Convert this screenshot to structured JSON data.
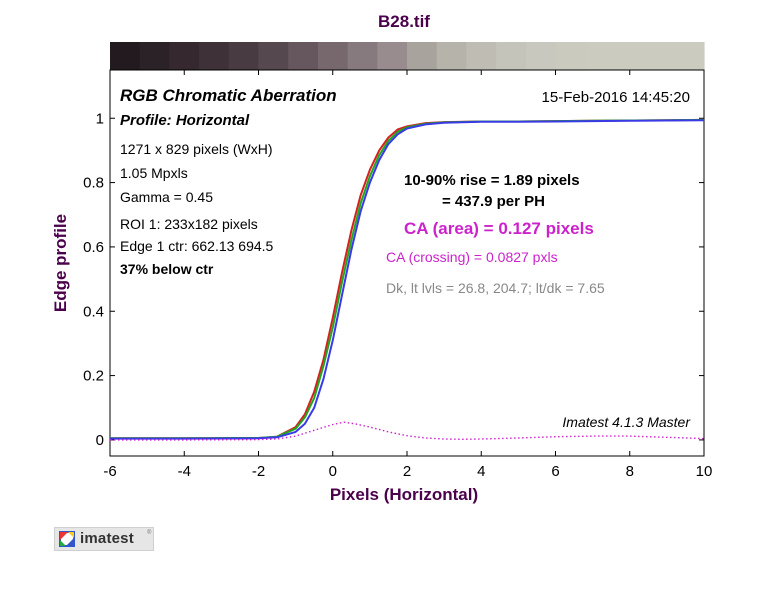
{
  "chart_data": {
    "type": "line",
    "title": "B28.tif",
    "xlabel": "Pixels (Horizontal)",
    "ylabel": "Edge profile",
    "xlim": [
      -6,
      10
    ],
    "ylim": [
      -0.05,
      1.15
    ],
    "xticks": [
      -6,
      -4,
      -2,
      0,
      2,
      4,
      6,
      8,
      10
    ],
    "yticks": [
      0,
      0.2,
      0.4,
      0.6,
      0.8,
      1
    ],
    "grid": false,
    "colors": {
      "red": "#d62020",
      "green": "#1fa81f",
      "blue": "#3a3ae6",
      "ca": "#cc22cc",
      "title": "#4b004b"
    },
    "series": [
      {
        "color": "red",
        "x": [
          -6,
          -4,
          -2,
          -1.5,
          -1,
          -0.75,
          -0.5,
          -0.25,
          0,
          0.25,
          0.5,
          0.75,
          1,
          1.25,
          1.5,
          1.75,
          2,
          2.5,
          3,
          4,
          5,
          6,
          7,
          8,
          9,
          10
        ],
        "y": [
          0.005,
          0.005,
          0.006,
          0.01,
          0.04,
          0.08,
          0.15,
          0.25,
          0.38,
          0.52,
          0.65,
          0.76,
          0.84,
          0.9,
          0.94,
          0.965,
          0.975,
          0.985,
          0.988,
          0.99,
          0.99,
          0.991,
          0.992,
          0.993,
          0.994,
          0.995
        ]
      },
      {
        "color": "green",
        "x": [
          -6,
          -4,
          -2,
          -1.5,
          -1,
          -0.75,
          -0.5,
          -0.25,
          0,
          0.25,
          0.5,
          0.75,
          1,
          1.25,
          1.5,
          1.75,
          2,
          2.5,
          3,
          4,
          5,
          6,
          7,
          8,
          9,
          10
        ],
        "y": [
          0.005,
          0.005,
          0.006,
          0.01,
          0.035,
          0.07,
          0.13,
          0.23,
          0.35,
          0.49,
          0.62,
          0.735,
          0.82,
          0.885,
          0.93,
          0.958,
          0.972,
          0.983,
          0.987,
          0.99,
          0.99,
          0.991,
          0.992,
          0.993,
          0.994,
          0.995
        ]
      },
      {
        "color": "blue",
        "x": [
          -6,
          -4,
          -2,
          -1.5,
          -1,
          -0.75,
          -0.5,
          -0.25,
          0,
          0.25,
          0.5,
          0.75,
          1,
          1.25,
          1.5,
          1.75,
          2,
          2.5,
          3,
          4,
          5,
          6,
          7,
          8,
          9,
          10
        ],
        "y": [
          0.004,
          0.004,
          0.005,
          0.008,
          0.025,
          0.05,
          0.1,
          0.19,
          0.31,
          0.45,
          0.59,
          0.71,
          0.8,
          0.87,
          0.92,
          0.95,
          0.968,
          0.981,
          0.986,
          0.989,
          0.989,
          0.99,
          0.991,
          0.992,
          0.993,
          0.994
        ]
      },
      {
        "color": "ca",
        "style": "dotted",
        "x": [
          -6,
          -4,
          -2,
          -1.5,
          -1,
          -0.5,
          0,
          0.3,
          0.6,
          1,
          1.5,
          2,
          2.5,
          3,
          3.5,
          4,
          5,
          6,
          7,
          8,
          9,
          10
        ],
        "y": [
          0,
          0,
          0.001,
          0.003,
          0.012,
          0.03,
          0.048,
          0.055,
          0.05,
          0.04,
          0.025,
          0.013,
          0.006,
          0.003,
          0.002,
          0.003,
          0.006,
          0.01,
          0.012,
          0.012,
          0.008,
          0.004
        ]
      }
    ],
    "annotations": {
      "heading": "RGB Chromatic Aberration",
      "profile": "Profile: Horizontal",
      "timestamp": "15-Feb-2016 14:45:20",
      "info": [
        "1271 x 829 pixels (WxH)",
        "1.05 Mpxls",
        "Gamma = 0.45",
        "ROI 1: 233x182 pixels",
        "Edge 1 ctr: 662.13  694.5"
      ],
      "below_ctr": "37% below ctr",
      "rise": "10-90% rise = 1.89 pixels",
      "per_ph": "= 437.9 per PH",
      "ca_area": "CA (area) = 0.127 pixels",
      "ca_crossing": "CA (crossing) = 0.0827 pxls",
      "dk_lt": "Dk, lt lvls = 26.8, 204.7;  lt/dk = 7.65",
      "watermark": "Imatest 4.1.3  Master"
    },
    "gradient_bar": [
      "#231a1f",
      "#2b2228",
      "#35292f",
      "#3e3238",
      "#483b41",
      "#56484f",
      "#65575d",
      "#76686d",
      "#877a7e",
      "#998c8f",
      "#a8a49d",
      "#b6b3aa",
      "#bfbdb3",
      "#c5c4ba",
      "#c8c8be",
      "#cacabf",
      "#cbcbc0",
      "#cbcbc0",
      "#cbcbc0",
      "#cbcbc0"
    ]
  },
  "logo": {
    "text": "imatest"
  }
}
